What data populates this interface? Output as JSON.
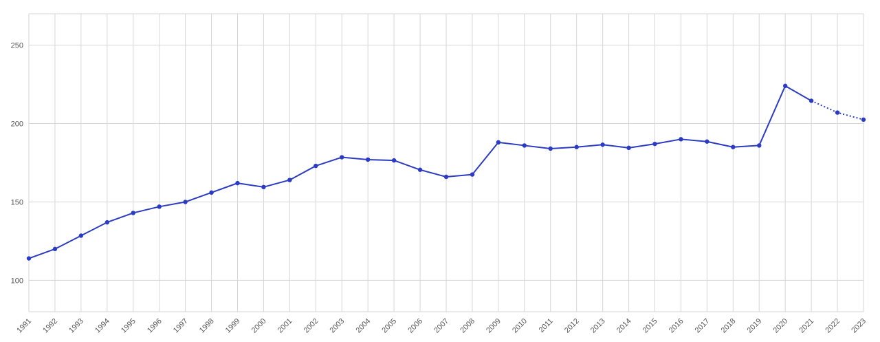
{
  "chart_data": {
    "type": "line",
    "title": "",
    "xlabel": "",
    "ylabel": "",
    "ylim": [
      80,
      270
    ],
    "yticks": [
      100,
      150,
      200,
      250
    ],
    "grid": true,
    "categories": [
      "1991",
      "1992",
      "1993",
      "1994",
      "1995",
      "1996",
      "1997",
      "1998",
      "1999",
      "2000",
      "2001",
      "2002",
      "2003",
      "2004",
      "2005",
      "2006",
      "2007",
      "2008",
      "2009",
      "2010",
      "2011",
      "2012",
      "2013",
      "2014",
      "2015",
      "2016",
      "2017",
      "2018",
      "2019",
      "2020",
      "2021",
      "2022",
      "2023"
    ],
    "series": [
      {
        "values": [
          114,
          120,
          128.5,
          137,
          143,
          147,
          150,
          156,
          162,
          159.5,
          164,
          173,
          178.5,
          177,
          176.5,
          170.5,
          166,
          167.5,
          188,
          186,
          184,
          185,
          186.5,
          184.5,
          187,
          190,
          188.5,
          185,
          186,
          224,
          214.5,
          207,
          202.5
        ],
        "color": "#2b3bc4",
        "projected_from_index": 30
      }
    ]
  }
}
